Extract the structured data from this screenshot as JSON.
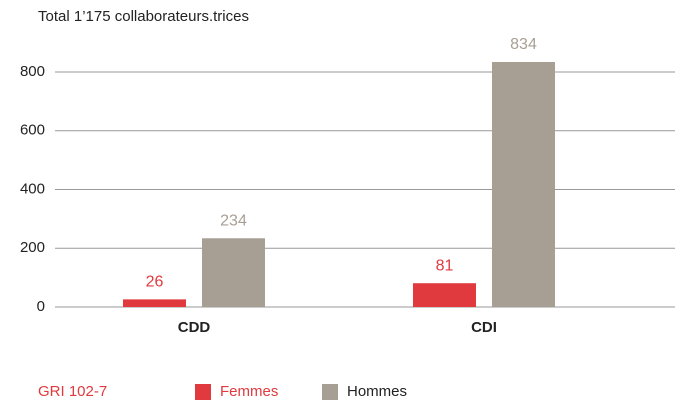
{
  "chart_data": {
    "type": "bar",
    "title": "Total 1’175 collaborateurs.trices",
    "categories": [
      "CDD",
      "CDI"
    ],
    "series": [
      {
        "name": "Femmes",
        "color": "#e03a3e",
        "values": [
          26,
          81
        ]
      },
      {
        "name": "Hommes",
        "color": "#a89f94",
        "values": [
          234,
          834
        ]
      }
    ],
    "ylim": [
      0,
      800
    ],
    "yticks": [
      0,
      200,
      400,
      600,
      800
    ],
    "grid": true,
    "annotation": "GRI 102-7",
    "legend": "bottom"
  }
}
